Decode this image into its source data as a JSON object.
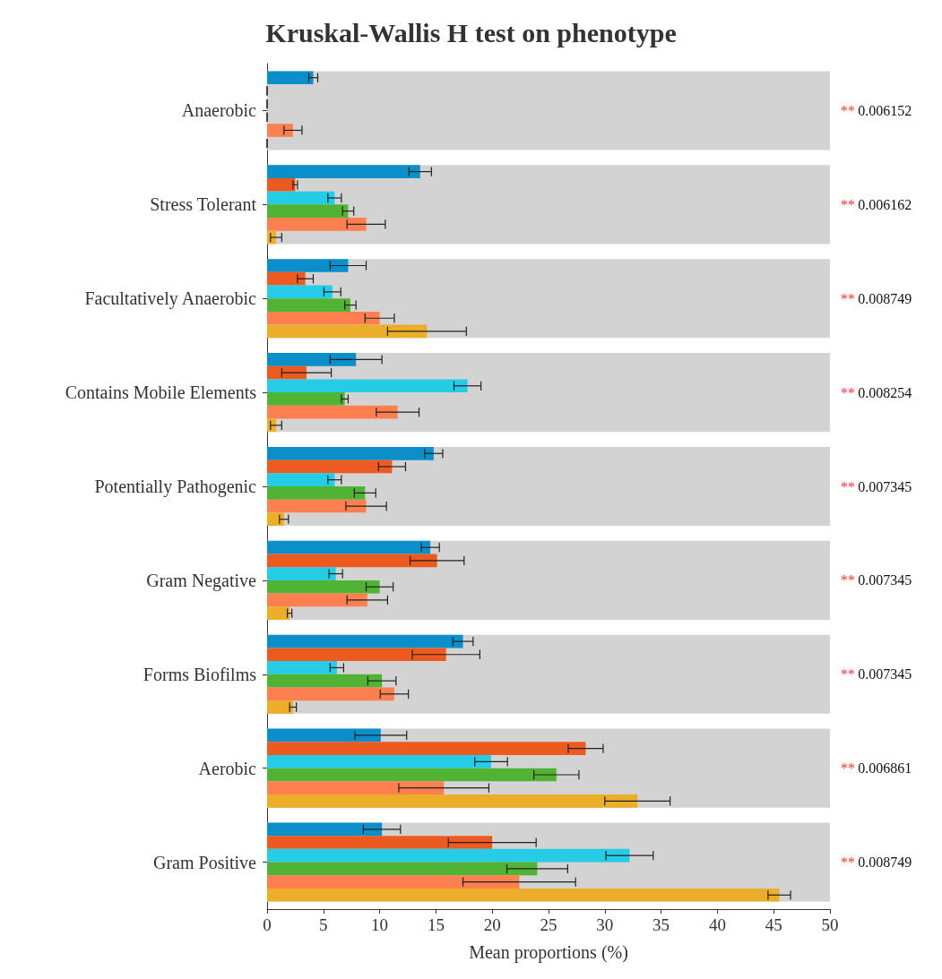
{
  "chart_data": {
    "type": "bar",
    "orientation": "horizontal",
    "title": "Kruskal-Wallis H test on phenotype",
    "xlabel": "Mean proportions (%)",
    "categories": [
      "Anaerobic",
      "Stress Tolerant",
      "Facultatively Anaerobic",
      "Contains Mobile Elements",
      "Potentially Pathogenic",
      "Gram Negative",
      "Forms Biofilms",
      "Aerobic",
      "Gram Positive"
    ],
    "series": [
      {
        "color": "#0a8fca",
        "values": [
          4.1,
          13.6,
          7.2,
          7.9,
          14.8,
          14.5,
          17.4,
          10.1,
          10.2
        ],
        "errors": [
          0.4,
          1.0,
          1.6,
          2.3,
          0.8,
          0.8,
          0.9,
          2.3,
          1.65
        ]
      },
      {
        "color": "#ec5a1f",
        "values": [
          0,
          2.5,
          3.4,
          3.5,
          11.1,
          15.1,
          15.9,
          28.3,
          20.0
        ],
        "errors": [
          0,
          0.2,
          0.7,
          2.2,
          1.2,
          2.4,
          3.0,
          1.55,
          3.9
        ]
      },
      {
        "color": "#24cce6",
        "values": [
          0,
          6.0,
          5.8,
          17.8,
          6.0,
          6.1,
          6.2,
          19.9,
          32.2
        ],
        "errors": [
          0,
          0.6,
          0.75,
          1.2,
          0.6,
          0.6,
          0.6,
          1.45,
          2.1
        ]
      },
      {
        "color": "#50b334",
        "values": [
          0,
          7.2,
          7.4,
          6.9,
          8.7,
          10.0,
          10.2,
          25.7,
          24.0
        ],
        "errors": [
          0,
          0.5,
          0.5,
          0.3,
          0.95,
          1.2,
          1.25,
          2.0,
          2.7
        ]
      },
      {
        "color": "#fe7f50",
        "values": [
          2.3,
          8.8,
          10.0,
          11.6,
          8.8,
          8.9,
          11.3,
          15.7,
          22.4
        ],
        "errors": [
          0.8,
          1.7,
          1.3,
          1.9,
          1.8,
          1.8,
          1.25,
          4.0,
          5.0
        ]
      },
      {
        "color": "#ecae28",
        "values": [
          0,
          0.8,
          14.2,
          0.8,
          1.5,
          2.0,
          2.3,
          32.9,
          45.5
        ],
        "errors": [
          0,
          0.5,
          3.5,
          0.5,
          0.4,
          0.2,
          0.3,
          2.9,
          1.0
        ]
      }
    ],
    "xlim": [
      0,
      50
    ],
    "xticks": [
      0,
      5,
      10,
      15,
      20,
      25,
      30,
      35,
      40,
      45,
      50
    ],
    "grid": false,
    "bands": [
      {
        "axis": "y",
        "from": "Anaerobic",
        "to": "Anaerobic",
        "color": "#d3d3d3"
      },
      {
        "axis": "y",
        "from": "Stress Tolerant",
        "to": "Stress Tolerant",
        "color": "#d3d3d3"
      },
      {
        "axis": "y",
        "from": "Facultatively Anaerobic",
        "to": "Facultatively Anaerobic",
        "color": "#d3d3d3"
      },
      {
        "axis": "y",
        "from": "Contains Mobile Elements",
        "to": "Contains Mobile Elements",
        "color": "#d3d3d3"
      },
      {
        "axis": "y",
        "from": "Potentially Pathogenic",
        "to": "Potentially Pathogenic",
        "color": "#d3d3d3"
      },
      {
        "axis": "y",
        "from": "Gram Negative",
        "to": "Gram Negative",
        "color": "#d3d3d3"
      },
      {
        "axis": "y",
        "from": "Forms Biofilms",
        "to": "Forms Biofilms",
        "color": "#d3d3d3"
      },
      {
        "axis": "y",
        "from": "Aerobic",
        "to": "Aerobic",
        "color": "#d3d3d3"
      },
      {
        "axis": "y",
        "from": "Gram Positive",
        "to": "Gram Positive",
        "color": "#d3d3d3"
      }
    ],
    "annotations": [
      "** 0.006152",
      "** 0.006162",
      "** 0.008749",
      "** 0.008254",
      "** 0.007345",
      "** 0.007345",
      "** 0.007345",
      "** 0.006861",
      "** 0.008749"
    ]
  }
}
